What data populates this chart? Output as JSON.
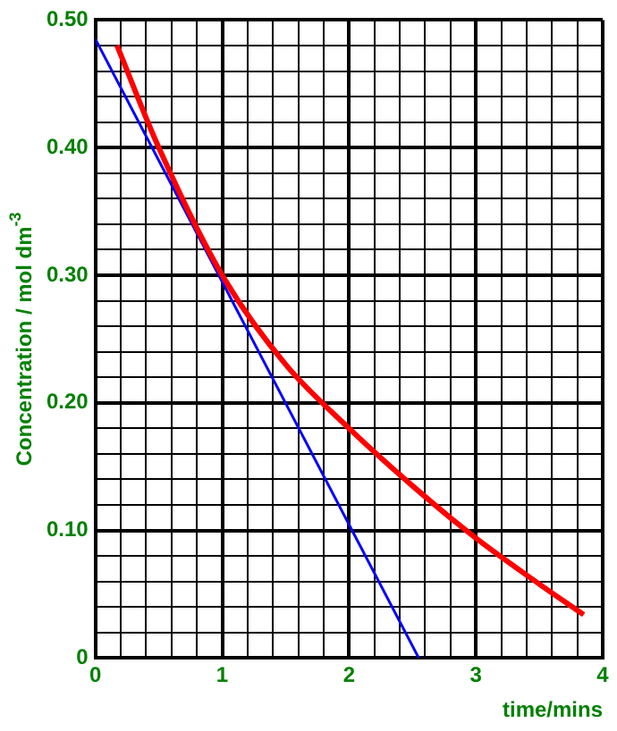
{
  "chart_data": {
    "type": "line",
    "xlabel": "time/mins",
    "ylabel": "Concentration / mol dm$^{-3}$",
    "xlim": [
      0,
      4
    ],
    "ylim": [
      0,
      0.5
    ],
    "xticks": [
      0,
      {
        "value": 0.2,
        "label": null
      },
      {
        "value": 0.4,
        "label": null
      },
      {
        "value": 0.6,
        "label": null
      },
      {
        "value": 0.8,
        "label": null
      },
      1,
      {
        "value": 1.2,
        "label": null
      },
      {
        "value": 1.4,
        "label": null
      },
      {
        "value": 1.6,
        "label": null
      },
      {
        "value": 1.8,
        "label": null
      },
      2,
      {
        "value": 2.2,
        "label": null
      },
      {
        "value": 2.4,
        "label": null
      },
      {
        "value": 2.6,
        "label": null
      },
      {
        "value": 2.8,
        "label": null
      },
      3,
      {
        "value": 3.2,
        "label": null
      },
      {
        "value": 3.4,
        "label": null
      },
      {
        "value": 3.6,
        "label": null
      },
      {
        "value": 3.8,
        "label": null
      },
      4
    ],
    "yticks": [
      0,
      {
        "value": 0.02,
        "label": null
      },
      {
        "value": 0.04,
        "label": null
      },
      {
        "value": 0.06,
        "label": null
      },
      {
        "value": 0.08,
        "label": null
      },
      {
        "value": 0.1,
        "label": "0.10"
      },
      {
        "value": 0.12,
        "label": null
      },
      {
        "value": 0.14,
        "label": null
      },
      {
        "value": 0.16,
        "label": null
      },
      {
        "value": 0.18,
        "label": null
      },
      {
        "value": 0.2,
        "label": "0.20"
      },
      {
        "value": 0.22,
        "label": null
      },
      {
        "value": 0.24,
        "label": null
      },
      {
        "value": 0.26,
        "label": null
      },
      {
        "value": 0.28,
        "label": null
      },
      {
        "value": 0.3,
        "label": "0.30"
      },
      {
        "value": 0.32,
        "label": null
      },
      {
        "value": 0.34,
        "label": null
      },
      {
        "value": 0.36,
        "label": null
      },
      {
        "value": 0.38,
        "label": null
      },
      {
        "value": 0.4,
        "label": "0.40"
      },
      {
        "value": 0.42,
        "label": null
      },
      {
        "value": 0.44,
        "label": null
      },
      {
        "value": 0.46,
        "label": null
      },
      {
        "value": 0.48,
        "label": null
      },
      {
        "value": 0.5,
        "label": "0.50"
      }
    ],
    "grid": true,
    "legend": false,
    "marker": "none",
    "line_style": "solid",
    "series": [
      {
        "color": "#ff0000",
        "x": [
          0.17,
          0.5,
          1.0,
          1.5,
          2.0,
          2.5,
          3.0,
          3.5,
          3.85
        ],
        "values": [
          0.48,
          0.4,
          0.3,
          0.23,
          0.18,
          0.135,
          0.094,
          0.058,
          0.034
        ]
      },
      {
        "color": "#0000ff",
        "x": [
          0,
          2.55
        ],
        "values": [
          0.485,
          0
        ]
      }
    ]
  }
}
